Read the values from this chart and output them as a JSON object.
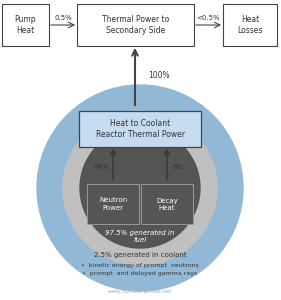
{
  "bg_color": "#ffffff",
  "blue_circle_color": "#92b8d8",
  "gray_circle_color": "#c0c0c0",
  "dark_circle_color": "#555555",
  "box_blue_color": "#c5dcf0",
  "arrow_color": "#444444",
  "text_dark": "#333333",
  "text_white": "#ffffff",
  "text_gray": "#aaaaaa",
  "pump_heat": "Pump\nHeat",
  "thermal_power": "Thermal Power to\nSecondary Side",
  "heat_losses": "Heat\nLosses",
  "heat_coolant": "Heat to Coolant\nReactor Thermal Power",
  "neutron_power": "Neutron\nPower",
  "decay_heat": "Decay\nHeat",
  "lbl_0p5": "0.5%",
  "lbl_lt0p5": "<0.5%",
  "lbl_100": "100%",
  "lbl_94": "94%",
  "lbl_6": "6%",
  "lbl_975": "97.5% generated in\nfuel",
  "lbl_2p5": "2.5% generated in coolant",
  "bullet1": "•  kinetic energy of prompt  neutrons",
  "bullet2": "•  prompt  and delayed gamma rays",
  "watermark": "www.nuclear-power.net",
  "fig_w": 2.81,
  "fig_h": 3.0,
  "dpi": 100
}
